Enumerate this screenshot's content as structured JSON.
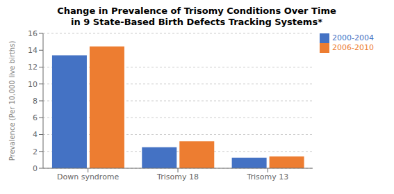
{
  "chart_data": {
    "type": "bar",
    "title": "Change in Prevalence of Trisomy Conditions Over Time\nin 9 State-Based Birth Defects Tracking Systems*",
    "categories": [
      "Down syndrome",
      "Trisomy 18",
      "Trisomy 13"
    ],
    "series": [
      {
        "name": "2000-2004",
        "color": "#4472C4",
        "values": [
          13.4,
          2.5,
          1.25
        ]
      },
      {
        "name": "2006-2010",
        "color": "#ED7D31",
        "values": [
          14.45,
          3.2,
          1.4
        ]
      }
    ],
    "ylabel": "Prevalence (Per 10,000 live births)",
    "ylim": [
      0,
      16
    ],
    "yticks": [
      0,
      2,
      4,
      6,
      8,
      10,
      12,
      14,
      16
    ],
    "grid": true,
    "legend": "upper right"
  }
}
